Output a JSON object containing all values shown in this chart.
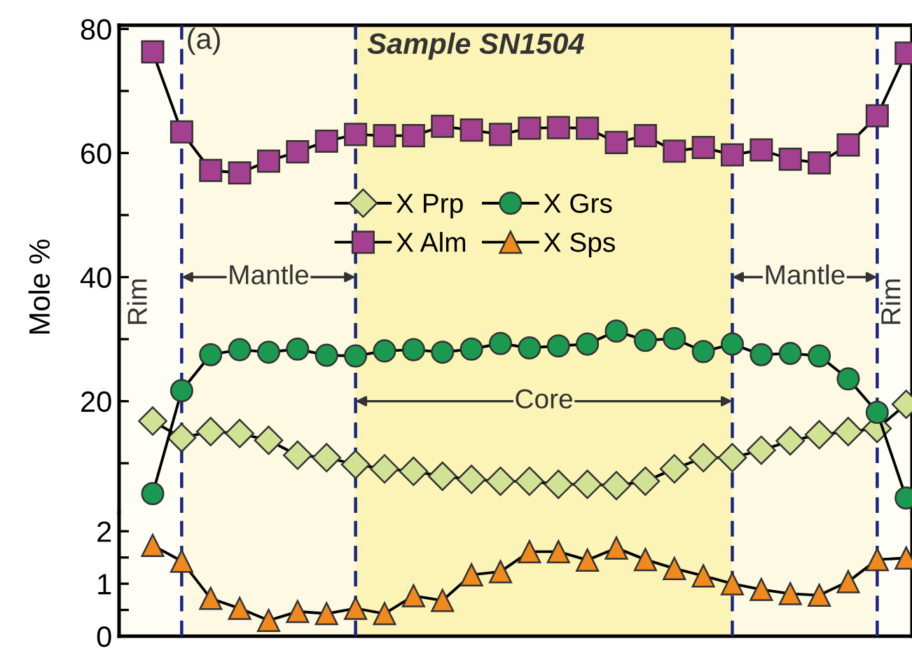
{
  "chart_data": [
    {
      "type": "line",
      "title": "Sample SN1504",
      "ylabel": "Mole %",
      "annotations": [
        "(a)",
        "Rim",
        "Mantle",
        "Core",
        "Mantle",
        "Rim"
      ],
      "categories": [
        null,
        null,
        null,
        null,
        null,
        null,
        null,
        null,
        null,
        null,
        null,
        null,
        null,
        null,
        null,
        null,
        null,
        null,
        null,
        null,
        null,
        null,
        null,
        null,
        null,
        null,
        null
      ],
      "ylim": [
        2,
        80.6
      ],
      "yticks": [
        {
          "value": 10,
          "label": null
        },
        20,
        {
          "value": 30,
          "label": null
        },
        40,
        {
          "value": 50,
          "label": null
        },
        60,
        {
          "value": 70,
          "label": null
        },
        80
      ],
      "tick_labels": "y",
      "grid": "x",
      "legend": "center",
      "line_style": "solid",
      "series": [
        {
          "name": "X Prp",
          "color": "#d2e295",
          "marker": "diamond",
          "values": [
            16.8,
            14.1,
            15.1,
            14.8,
            13.7,
            11.3,
            10.9,
            9.8,
            9.1,
            8.7,
            7.9,
            7.4,
            7.1,
            7.1,
            6.6,
            6.6,
            6.4,
            7.1,
            9.1,
            10.9,
            10.9,
            12.1,
            13.6,
            14.6,
            15.1,
            15.6,
            19.5
          ]
        },
        {
          "name": "X Alm",
          "color": "#a3408f",
          "marker": "square",
          "values": [
            76.3,
            63.4,
            57.2,
            56.8,
            58.7,
            60.2,
            61.9,
            63.0,
            62.8,
            62.8,
            64.3,
            63.7,
            63.0,
            64.0,
            64.1,
            64.0,
            61.7,
            62.8,
            60.3,
            60.9,
            59.7,
            60.5,
            59.0,
            58.4,
            61.3,
            66.0,
            76.1
          ]
        },
        {
          "name": "X Grs",
          "color": "#1b9950",
          "marker": "circle",
          "values": [
            5.1,
            21.7,
            27.5,
            28.3,
            27.9,
            28.4,
            27.4,
            27.3,
            28.1,
            28.3,
            27.9,
            28.4,
            29.3,
            28.6,
            28.9,
            29.2,
            31.3,
            29.8,
            30.1,
            28.0,
            29.2,
            27.5,
            27.7,
            27.3,
            23.6,
            18.2,
            4.4
          ]
        }
      ]
    },
    {
      "type": "line",
      "categories": [
        null,
        null,
        null,
        null,
        null,
        null,
        null,
        null,
        null,
        null,
        null,
        null,
        null,
        null,
        null,
        null,
        null,
        null,
        null,
        null,
        null,
        null,
        null,
        null,
        null,
        null,
        null
      ],
      "ylim": [
        0,
        2.35
      ],
      "yticks": [
        0,
        {
          "value": 0.5,
          "label": null
        },
        1,
        {
          "value": 1.5,
          "label": null
        },
        2
      ],
      "tick_labels": "y",
      "grid": "x",
      "line_style": "solid",
      "series": [
        {
          "name": "X Sps",
          "color": "#f08a1e",
          "marker": "triangle",
          "values": [
            1.73,
            1.43,
            0.72,
            0.53,
            0.3,
            0.47,
            0.43,
            0.53,
            0.43,
            0.77,
            0.68,
            1.17,
            1.23,
            1.61,
            1.61,
            1.45,
            1.68,
            1.46,
            1.29,
            1.15,
            1.0,
            0.89,
            0.81,
            0.78,
            1.04,
            1.46,
            1.49
          ]
        }
      ]
    }
  ]
}
